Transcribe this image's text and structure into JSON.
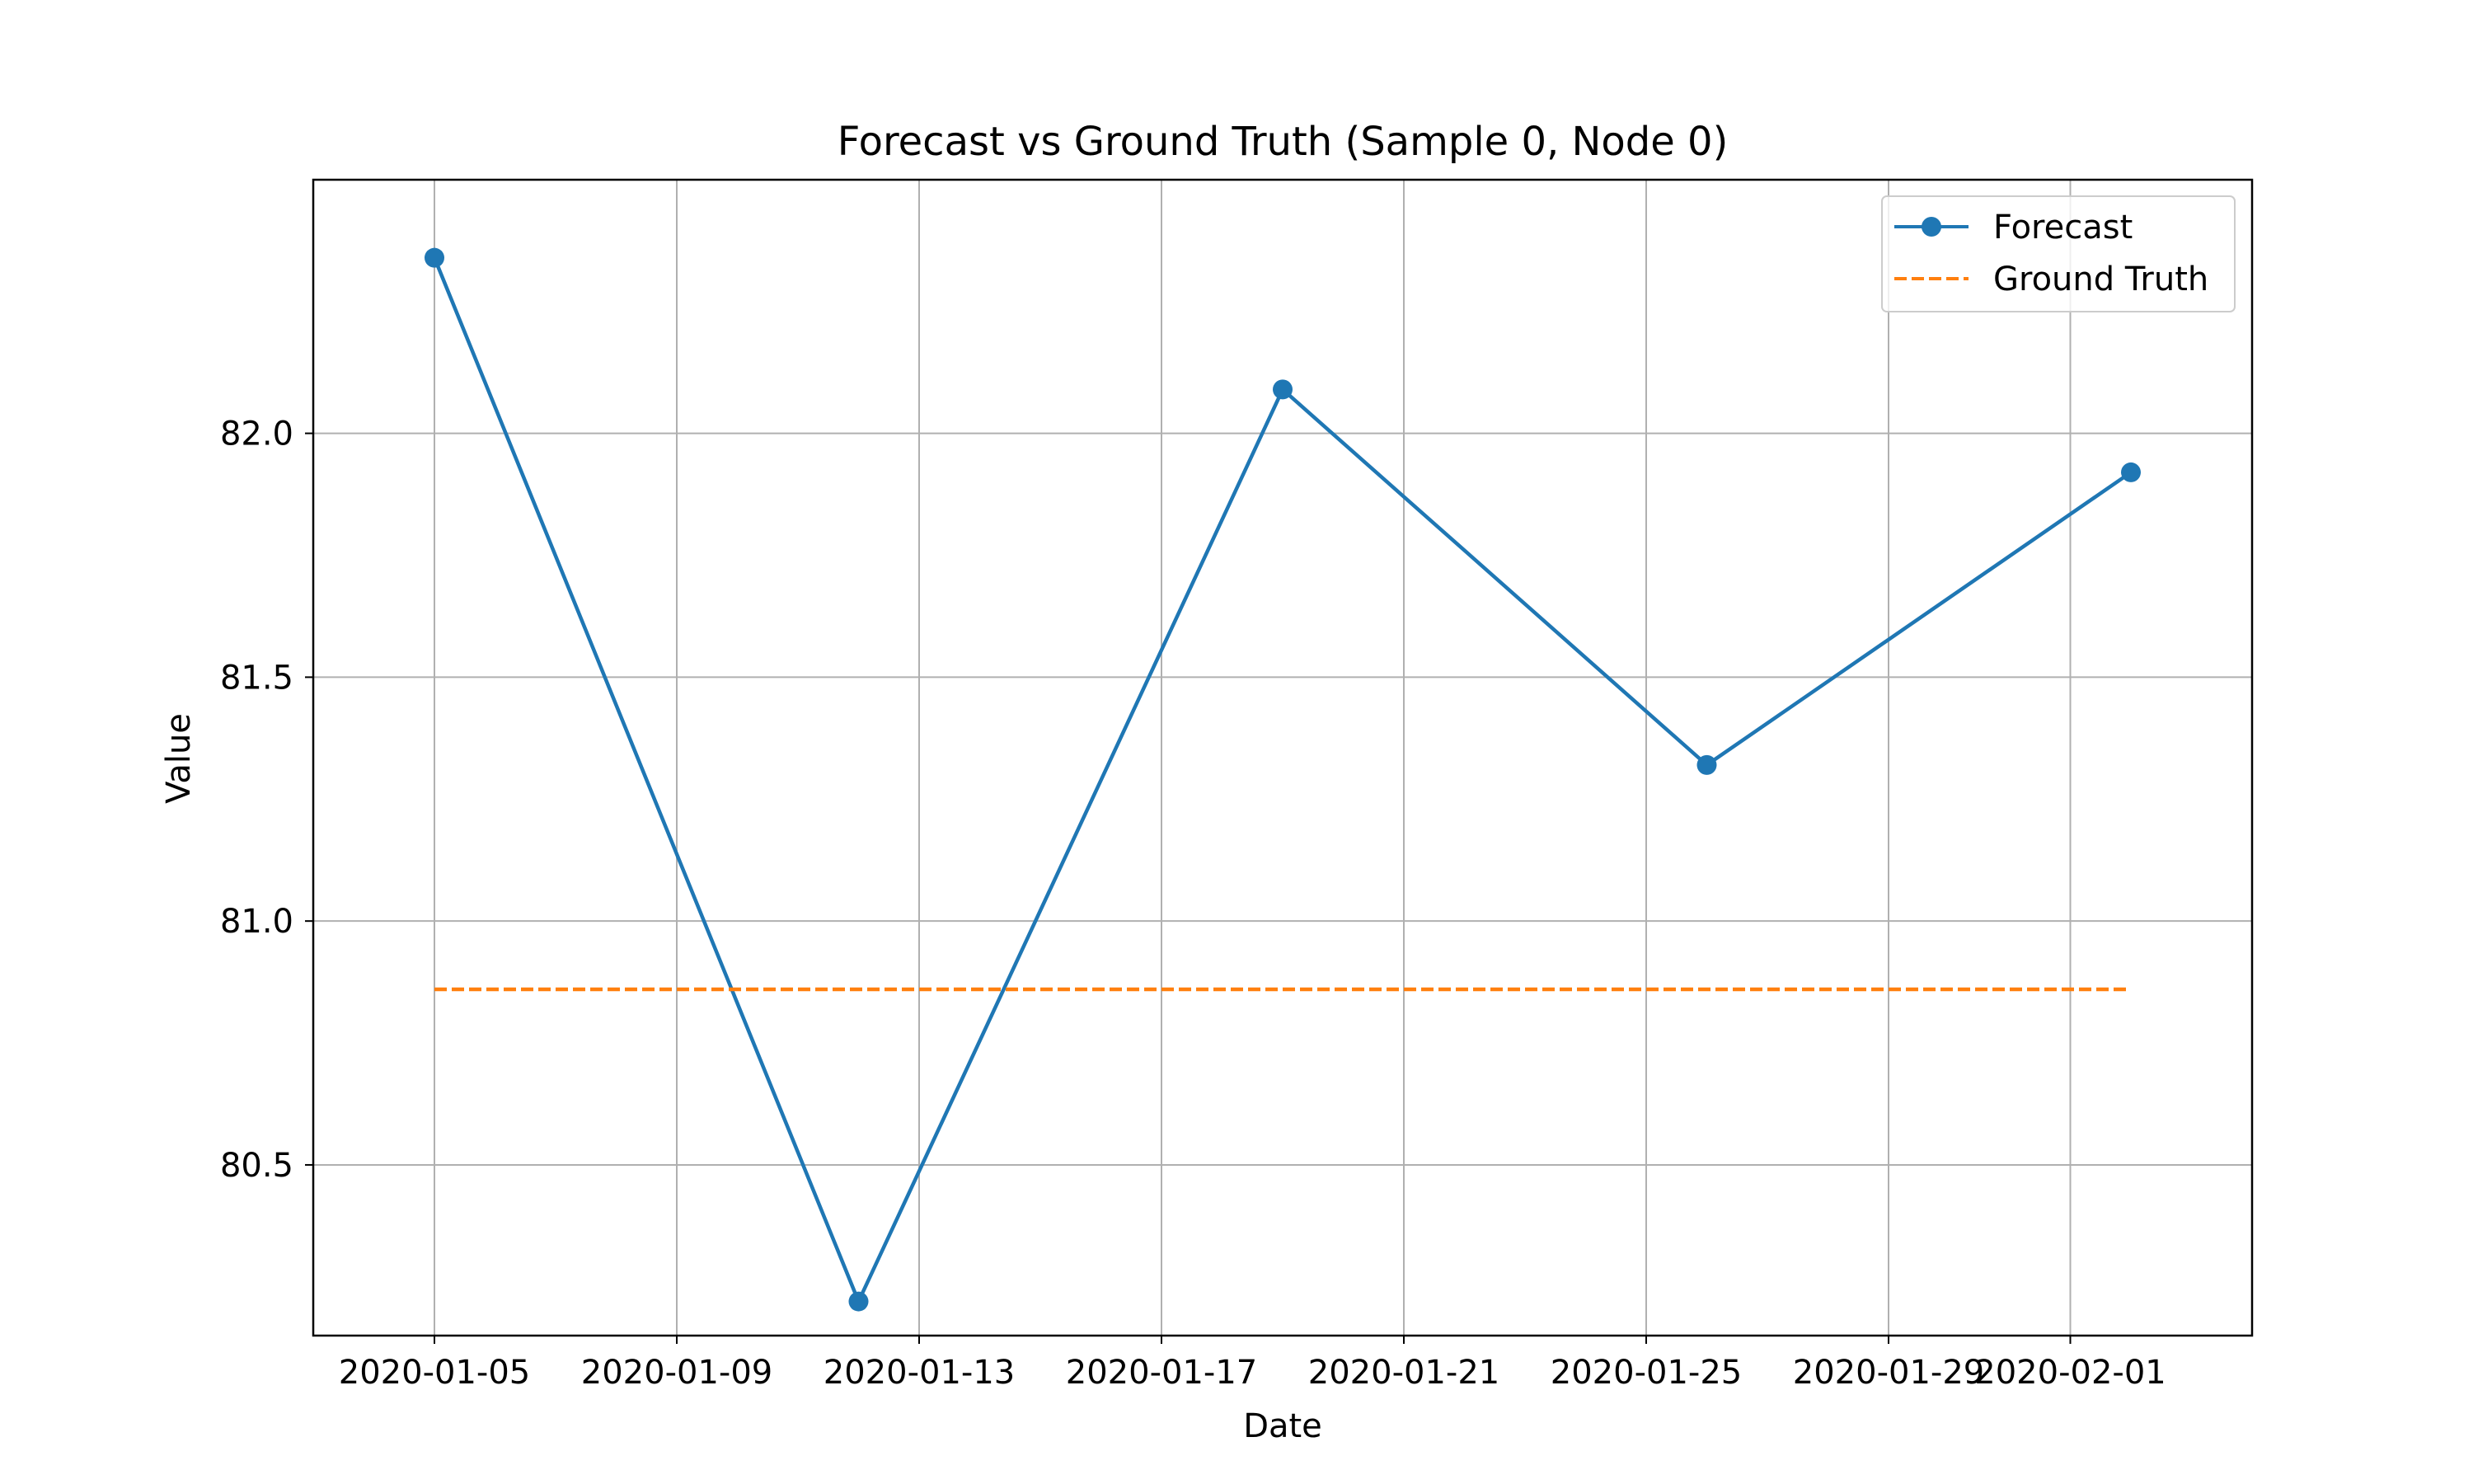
{
  "chart_data": {
    "type": "line",
    "title": "Forecast vs Ground Truth (Sample 0, Node 0)",
    "xlabel": "Date",
    "ylabel": "Value",
    "x_type": "date",
    "x": [
      "2020-01-05",
      "2020-01-12",
      "2020-01-19",
      "2020-01-26",
      "2020-02-02"
    ],
    "xlim": [
      "2020-01-03",
      "2020-02-04"
    ],
    "ylim": [
      80.15,
      82.52
    ],
    "x_ticks": [
      "2020-01-05",
      "2020-01-09",
      "2020-01-13",
      "2020-01-17",
      "2020-01-21",
      "2020-01-25",
      "2020-01-29",
      "2020-02-01"
    ],
    "y_ticks": [
      80.5,
      81.0,
      81.5,
      82.0
    ],
    "y_tick_labels": [
      "80.5",
      "81.0",
      "81.5",
      "82.0"
    ],
    "grid": true,
    "legend_position": "top-right",
    "series": [
      {
        "name": "Forecast",
        "values": [
          82.36,
          80.22,
          82.09,
          81.32,
          81.92
        ],
        "color": "#1f77b4",
        "line_style": "solid",
        "marker": "circle"
      },
      {
        "name": "Ground Truth",
        "values": [
          80.86,
          80.86,
          80.86,
          80.86,
          80.86
        ],
        "color": "#ff7f0e",
        "line_style": "dashed",
        "marker": "none"
      }
    ]
  }
}
